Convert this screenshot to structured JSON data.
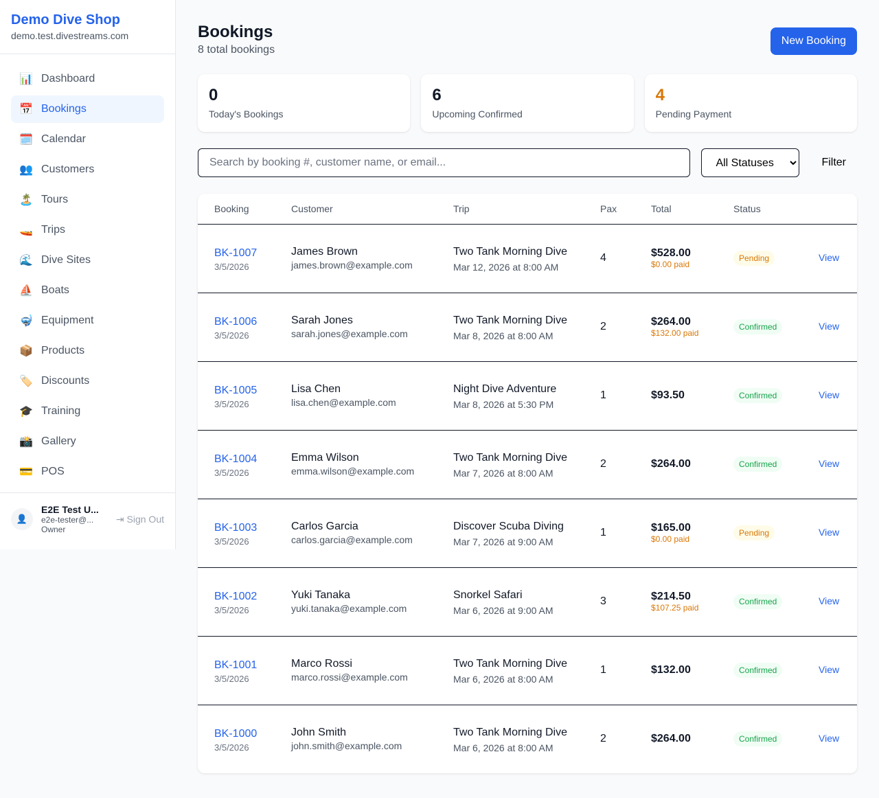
{
  "sidebar": {
    "brand": "Demo Dive Shop",
    "domain": "demo.test.divestreams.com",
    "items": [
      {
        "label": "Dashboard",
        "icon": "📊",
        "icon_name": "bar-chart-icon"
      },
      {
        "label": "Bookings",
        "icon": "📅",
        "icon_name": "calendar-icon",
        "active": true
      },
      {
        "label": "Calendar",
        "icon": "🗓️",
        "icon_name": "spiral-calendar-icon"
      },
      {
        "label": "Customers",
        "icon": "👥",
        "icon_name": "users-icon"
      },
      {
        "label": "Tours",
        "icon": "🏝️",
        "icon_name": "island-icon"
      },
      {
        "label": "Trips",
        "icon": "🚤",
        "icon_name": "speedboat-icon"
      },
      {
        "label": "Dive Sites",
        "icon": "🌊",
        "icon_name": "wave-icon"
      },
      {
        "label": "Boats",
        "icon": "⛵",
        "icon_name": "sailboat-icon"
      },
      {
        "label": "Equipment",
        "icon": "🤿",
        "icon_name": "diving-mask-icon"
      },
      {
        "label": "Products",
        "icon": "📦",
        "icon_name": "package-icon"
      },
      {
        "label": "Discounts",
        "icon": "🏷️",
        "icon_name": "tag-icon"
      },
      {
        "label": "Training",
        "icon": "🎓",
        "icon_name": "graduation-cap-icon"
      },
      {
        "label": "Gallery",
        "icon": "📸",
        "icon_name": "camera-icon"
      },
      {
        "label": "POS",
        "icon": "💳",
        "icon_name": "credit-card-icon"
      }
    ],
    "user": {
      "name": "E2E Test U...",
      "email": "e2e-tester@...",
      "role": "Owner",
      "sign_out": "Sign Out"
    }
  },
  "header": {
    "title": "Bookings",
    "subtitle": "8 total bookings",
    "new_booking": "New Booking"
  },
  "stats": [
    {
      "value": "0",
      "label": "Today's Bookings",
      "color": "#111827"
    },
    {
      "value": "6",
      "label": "Upcoming Confirmed",
      "color": "#111827"
    },
    {
      "value": "4",
      "label": "Pending Payment",
      "color": "#d97706"
    }
  ],
  "filters": {
    "search_placeholder": "Search by booking #, customer name, or email...",
    "status_selected": "All Statuses",
    "filter_label": "Filter"
  },
  "table": {
    "columns": [
      "Booking",
      "Customer",
      "Trip",
      "Pax",
      "Total",
      "Status",
      ""
    ],
    "rows": [
      {
        "id": "BK-1007",
        "date": "3/5/2026",
        "customer": "James Brown",
        "email": "james.brown@example.com",
        "trip": "Two Tank Morning Dive",
        "when": "Mar 12, 2026 at 8:00 AM",
        "pax": "4",
        "total": "$528.00",
        "paid": "$0.00 paid",
        "status": "Pending"
      },
      {
        "id": "BK-1006",
        "date": "3/5/2026",
        "customer": "Sarah Jones",
        "email": "sarah.jones@example.com",
        "trip": "Two Tank Morning Dive",
        "when": "Mar 8, 2026 at 8:00 AM",
        "pax": "2",
        "total": "$264.00",
        "paid": "$132.00 paid",
        "status": "Confirmed"
      },
      {
        "id": "BK-1005",
        "date": "3/5/2026",
        "customer": "Lisa Chen",
        "email": "lisa.chen@example.com",
        "trip": "Night Dive Adventure",
        "when": "Mar 8, 2026 at 5:30 PM",
        "pax": "1",
        "total": "$93.50",
        "paid": "",
        "status": "Confirmed"
      },
      {
        "id": "BK-1004",
        "date": "3/5/2026",
        "customer": "Emma Wilson",
        "email": "emma.wilson@example.com",
        "trip": "Two Tank Morning Dive",
        "when": "Mar 7, 2026 at 8:00 AM",
        "pax": "2",
        "total": "$264.00",
        "paid": "",
        "status": "Confirmed"
      },
      {
        "id": "BK-1003",
        "date": "3/5/2026",
        "customer": "Carlos Garcia",
        "email": "carlos.garcia@example.com",
        "trip": "Discover Scuba Diving",
        "when": "Mar 7, 2026 at 9:00 AM",
        "pax": "1",
        "total": "$165.00",
        "paid": "$0.00 paid",
        "status": "Pending"
      },
      {
        "id": "BK-1002",
        "date": "3/5/2026",
        "customer": "Yuki Tanaka",
        "email": "yuki.tanaka@example.com",
        "trip": "Snorkel Safari",
        "when": "Mar 6, 2026 at 9:00 AM",
        "pax": "3",
        "total": "$214.50",
        "paid": "$107.25 paid",
        "status": "Confirmed"
      },
      {
        "id": "BK-1001",
        "date": "3/5/2026",
        "customer": "Marco Rossi",
        "email": "marco.rossi@example.com",
        "trip": "Two Tank Morning Dive",
        "when": "Mar 6, 2026 at 8:00 AM",
        "pax": "1",
        "total": "$132.00",
        "paid": "",
        "status": "Confirmed"
      },
      {
        "id": "BK-1000",
        "date": "3/5/2026",
        "customer": "John Smith",
        "email": "john.smith@example.com",
        "trip": "Two Tank Morning Dive",
        "when": "Mar 6, 2026 at 8:00 AM",
        "pax": "2",
        "total": "$264.00",
        "paid": "",
        "status": "Confirmed"
      }
    ],
    "view_label": "View"
  }
}
